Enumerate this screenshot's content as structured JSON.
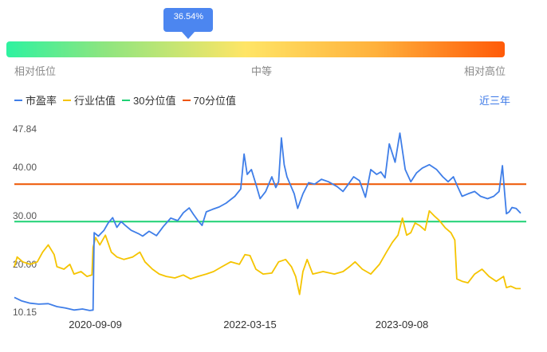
{
  "gauge": {
    "percentile_label": "36.54%",
    "percentile": 0.3654,
    "low_label": "相对低位",
    "mid_label": "中等",
    "high_label": "相对高位"
  },
  "legend": [
    {
      "label": "市盈率",
      "color": "#3f7ee8"
    },
    {
      "label": "行业估值",
      "color": "#f5c400"
    },
    {
      "label": "30分位值",
      "color": "#1fd174"
    },
    {
      "label": "70分位值",
      "color": "#ee5500"
    }
  ],
  "range_label": "近三年",
  "chart_data": {
    "type": "line",
    "xlim": [
      "2019-11-25",
      "2024-11-25"
    ],
    "ylim": [
      10.15,
      47.84
    ],
    "x_tick_labels": [
      "2020-09-09",
      "2022-03-15",
      "2023-09-08"
    ],
    "y_tick_labels": [
      "47.84",
      "40.00",
      "30.00",
      "20.00",
      "10.15"
    ],
    "grid": false,
    "legend_position": "top-left",
    "reference_lines": [
      {
        "name": "30分位值",
        "value": 28.8,
        "color": "#1fd174"
      },
      {
        "name": "70分位值",
        "value": 36.5,
        "color": "#ee5500"
      }
    ],
    "series": [
      {
        "name": "市盈率",
        "color": "#3f7ee8",
        "points": [
          [
            "2019-11-25",
            13.2
          ],
          [
            "2019-12-20",
            12.5
          ],
          [
            "2020-01-20",
            12.0
          ],
          [
            "2020-02-20",
            11.8
          ],
          [
            "2020-03-25",
            11.9
          ],
          [
            "2020-04-25",
            11.3
          ],
          [
            "2020-05-25",
            11.0
          ],
          [
            "2020-06-25",
            10.6
          ],
          [
            "2020-07-25",
            10.8
          ],
          [
            "2020-08-20",
            10.5
          ],
          [
            "2020-09-01",
            10.6
          ],
          [
            "2020-09-05",
            26.5
          ],
          [
            "2020-09-20",
            25.8
          ],
          [
            "2020-10-10",
            27.0
          ],
          [
            "2020-10-25",
            28.5
          ],
          [
            "2020-11-10",
            29.6
          ],
          [
            "2020-11-25",
            27.6
          ],
          [
            "2020-12-10",
            28.8
          ],
          [
            "2020-12-25",
            28.0
          ],
          [
            "2021-01-15",
            27.0
          ],
          [
            "2021-02-10",
            26.3
          ],
          [
            "2021-02-25",
            25.8
          ],
          [
            "2021-03-20",
            26.8
          ],
          [
            "2021-04-15",
            25.9
          ],
          [
            "2021-05-10",
            27.8
          ],
          [
            "2021-06-05",
            29.5
          ],
          [
            "2021-06-30",
            29.0
          ],
          [
            "2021-07-20",
            30.6
          ],
          [
            "2021-08-10",
            31.6
          ],
          [
            "2021-08-25",
            30.3
          ],
          [
            "2021-09-10",
            29.0
          ],
          [
            "2021-09-25",
            28.0
          ],
          [
            "2021-10-10",
            30.8
          ],
          [
            "2021-11-01",
            31.3
          ],
          [
            "2021-11-25",
            31.8
          ],
          [
            "2021-12-20",
            32.6
          ],
          [
            "2022-01-20",
            34.0
          ],
          [
            "2022-02-10",
            35.5
          ],
          [
            "2022-02-22",
            42.7
          ],
          [
            "2022-03-05",
            38.5
          ],
          [
            "2022-03-20",
            39.5
          ],
          [
            "2022-04-05",
            36.5
          ],
          [
            "2022-04-20",
            33.5
          ],
          [
            "2022-05-10",
            35.0
          ],
          [
            "2022-06-01",
            38.0
          ],
          [
            "2022-06-15",
            35.8
          ],
          [
            "2022-06-25",
            37.0
          ],
          [
            "2022-07-05",
            46.0
          ],
          [
            "2022-07-15",
            40.5
          ],
          [
            "2022-07-25",
            38.0
          ],
          [
            "2022-08-05",
            36.5
          ],
          [
            "2022-08-20",
            34.5
          ],
          [
            "2022-09-01",
            31.5
          ],
          [
            "2022-09-20",
            34.5
          ],
          [
            "2022-10-10",
            36.8
          ],
          [
            "2022-11-01",
            36.5
          ],
          [
            "2022-11-25",
            37.5
          ],
          [
            "2022-12-20",
            37.0
          ],
          [
            "2023-01-20",
            36.0
          ],
          [
            "2023-02-10",
            35.0
          ],
          [
            "2023-03-01",
            36.5
          ],
          [
            "2023-03-20",
            38.0
          ],
          [
            "2023-04-10",
            37.2
          ],
          [
            "2023-05-01",
            33.8
          ],
          [
            "2023-05-20",
            39.5
          ],
          [
            "2023-06-10",
            38.5
          ],
          [
            "2023-06-25",
            39.0
          ],
          [
            "2023-07-10",
            37.8
          ],
          [
            "2023-07-25",
            44.8
          ],
          [
            "2023-08-15",
            41.0
          ],
          [
            "2023-09-01",
            47.0
          ],
          [
            "2023-09-20",
            39.5
          ],
          [
            "2023-10-10",
            37.0
          ],
          [
            "2023-10-30",
            38.8
          ],
          [
            "2023-11-20",
            39.8
          ],
          [
            "2023-12-15",
            40.5
          ],
          [
            "2024-01-10",
            39.5
          ],
          [
            "2024-02-01",
            38.0
          ],
          [
            "2024-02-20",
            37.0
          ],
          [
            "2024-03-10",
            38.0
          ],
          [
            "2024-03-25",
            36.0
          ],
          [
            "2024-04-10",
            34.0
          ],
          [
            "2024-05-01",
            34.5
          ],
          [
            "2024-05-25",
            35.0
          ],
          [
            "2024-06-15",
            34.0
          ],
          [
            "2024-07-10",
            33.5
          ],
          [
            "2024-08-01",
            34.0
          ],
          [
            "2024-08-20",
            35.0
          ],
          [
            "2024-09-01",
            40.3
          ],
          [
            "2024-09-08",
            35.2
          ],
          [
            "2024-09-15",
            30.4
          ],
          [
            "2024-09-25",
            30.8
          ],
          [
            "2024-10-05",
            31.7
          ],
          [
            "2024-10-20",
            31.5
          ],
          [
            "2024-11-05",
            30.5
          ]
        ]
      },
      {
        "name": "行业估值",
        "color": "#f5c400",
        "points": [
          [
            "2019-11-25",
            19.5
          ],
          [
            "2019-12-05",
            21.5
          ],
          [
            "2019-12-25",
            20.5
          ],
          [
            "2020-01-20",
            20.0
          ],
          [
            "2020-02-15",
            20.5
          ],
          [
            "2020-03-05",
            22.5
          ],
          [
            "2020-03-25",
            24.0
          ],
          [
            "2020-04-15",
            22.0
          ],
          [
            "2020-04-25",
            19.5
          ],
          [
            "2020-05-20",
            19.0
          ],
          [
            "2020-06-10",
            20.0
          ],
          [
            "2020-06-25",
            18.0
          ],
          [
            "2020-07-20",
            18.5
          ],
          [
            "2020-08-10",
            17.5
          ],
          [
            "2020-08-28",
            17.8
          ],
          [
            "2020-09-01",
            23.5
          ],
          [
            "2020-09-10",
            25.5
          ],
          [
            "2020-09-25",
            24.0
          ],
          [
            "2020-10-15",
            26.0
          ],
          [
            "2020-11-05",
            22.5
          ],
          [
            "2020-11-25",
            21.5
          ],
          [
            "2020-12-20",
            21.0
          ],
          [
            "2021-01-20",
            21.5
          ],
          [
            "2021-02-15",
            22.5
          ],
          [
            "2021-03-05",
            20.5
          ],
          [
            "2021-04-01",
            19.0
          ],
          [
            "2021-04-25",
            18.0
          ],
          [
            "2021-05-20",
            17.5
          ],
          [
            "2021-06-20",
            17.2
          ],
          [
            "2021-07-20",
            17.8
          ],
          [
            "2021-08-15",
            17.0
          ],
          [
            "2021-09-10",
            17.5
          ],
          [
            "2021-10-10",
            18.0
          ],
          [
            "2021-11-05",
            18.5
          ],
          [
            "2021-12-05",
            19.5
          ],
          [
            "2022-01-05",
            20.5
          ],
          [
            "2022-02-05",
            20.0
          ],
          [
            "2022-02-25",
            22.0
          ],
          [
            "2022-03-15",
            21.8
          ],
          [
            "2022-04-05",
            19.0
          ],
          [
            "2022-05-01",
            18.0
          ],
          [
            "2022-06-01",
            18.2
          ],
          [
            "2022-06-25",
            20.5
          ],
          [
            "2022-07-20",
            21.0
          ],
          [
            "2022-08-10",
            19.5
          ],
          [
            "2022-08-25",
            17.5
          ],
          [
            "2022-09-08",
            13.8
          ],
          [
            "2022-09-20",
            18.5
          ],
          [
            "2022-10-05",
            21.0
          ],
          [
            "2022-10-25",
            18.0
          ],
          [
            "2022-12-01",
            18.5
          ],
          [
            "2023-01-10",
            18.0
          ],
          [
            "2023-02-10",
            18.5
          ],
          [
            "2023-03-05",
            19.5
          ],
          [
            "2023-03-25",
            20.5
          ],
          [
            "2023-04-20",
            19.0
          ],
          [
            "2023-05-20",
            18.0
          ],
          [
            "2023-06-20",
            20.0
          ],
          [
            "2023-07-15",
            22.5
          ],
          [
            "2023-08-05",
            24.5
          ],
          [
            "2023-08-25",
            26.0
          ],
          [
            "2023-09-10",
            29.5
          ],
          [
            "2023-09-25",
            26.0
          ],
          [
            "2023-10-10",
            26.5
          ],
          [
            "2023-10-25",
            28.5
          ],
          [
            "2023-11-10",
            28.0
          ],
          [
            "2023-11-30",
            27.0
          ],
          [
            "2023-12-15",
            31.0
          ],
          [
            "2024-01-01",
            30.0
          ],
          [
            "2024-01-20",
            29.0
          ],
          [
            "2024-02-10",
            27.5
          ],
          [
            "2024-03-01",
            26.5
          ],
          [
            "2024-03-15",
            25.0
          ],
          [
            "2024-03-22",
            17.0
          ],
          [
            "2024-04-10",
            16.5
          ],
          [
            "2024-05-01",
            16.2
          ],
          [
            "2024-05-25",
            18.0
          ],
          [
            "2024-06-20",
            19.0
          ],
          [
            "2024-07-15",
            17.5
          ],
          [
            "2024-08-10",
            16.5
          ],
          [
            "2024-09-05",
            17.5
          ],
          [
            "2024-09-15",
            15.2
          ],
          [
            "2024-10-01",
            15.5
          ],
          [
            "2024-10-20",
            15.0
          ],
          [
            "2024-11-05",
            15.0
          ]
        ]
      }
    ]
  }
}
